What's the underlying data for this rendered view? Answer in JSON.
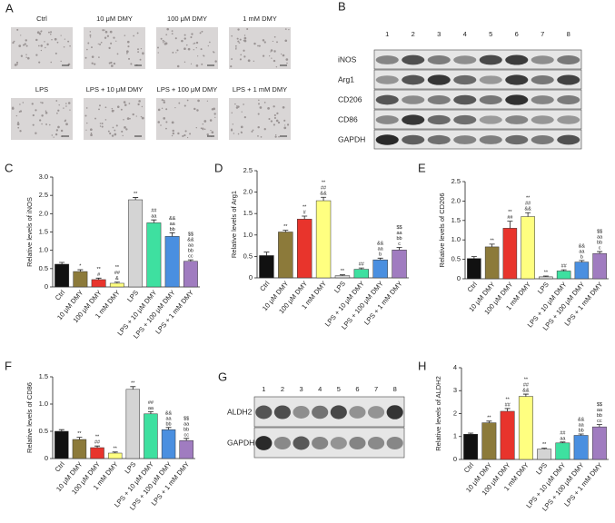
{
  "panel_a": {
    "panel": "A",
    "labels": [
      "Ctrl",
      "10 μM DMY",
      "100 μM DMY",
      "1 mM DMY",
      "LPS",
      "LPS + 10 μM DMY",
      "LPS + 100 μM DMY",
      "LPS + 1 mM DMY"
    ]
  },
  "panel_b": {
    "panel": "B",
    "lanes": [
      "1",
      "2",
      "3",
      "4",
      "5",
      "6",
      "7",
      "8"
    ],
    "rows": [
      "iNOS",
      "Arg1",
      "CD206",
      "CD86",
      "GAPDH"
    ]
  },
  "panel_g": {
    "panel": "G",
    "lanes": [
      "1",
      "2",
      "3",
      "4",
      "5",
      "6",
      "7",
      "8"
    ],
    "rows": [
      "ALDH2",
      "GAPDH"
    ]
  },
  "chart_data": [
    {
      "type": "bar",
      "panel": "C",
      "ylabel": "Relative levels of iNOS",
      "categories": [
        "Ctrl",
        "10 μM DMY",
        "100 μM DMY",
        "1 mM DMY",
        "LPS",
        "LPS + 10 μM DMY",
        "LPS + 100 μM DMY",
        "LPS + 1 mM DMY"
      ],
      "values": [
        0.62,
        0.42,
        0.2,
        0.1,
        2.38,
        1.75,
        1.38,
        0.7
      ],
      "errors": [
        0.05,
        0.05,
        0.04,
        0.03,
        0.06,
        0.08,
        0.1,
        0.04
      ],
      "colors": [
        "#111111",
        "#8c7a3a",
        "#e8342c",
        "#ffff80",
        "#d4d4d4",
        "#3ee0a0",
        "#4a8fe0",
        "#a07cc0"
      ],
      "annotations": [
        [],
        [
          "*"
        ],
        [
          "**",
          "#"
        ],
        [
          "**",
          "##",
          "&"
        ],
        [
          "**"
        ],
        [
          "##",
          "aa"
        ],
        [
          "&&",
          "aa",
          "bb"
        ],
        [
          "$$",
          "&&",
          "aa",
          "bb",
          "cc"
        ]
      ],
      "ylim": [
        0,
        3
      ],
      "yticks": [
        0,
        0.5,
        {
          "value": 1,
          "label": "1.0"
        },
        1.5,
        {
          "value": 2,
          "label": "2.0"
        },
        2.5,
        {
          "value": 3,
          "label": "3.0"
        }
      ]
    },
    {
      "type": "bar",
      "panel": "D",
      "ylabel": "Relative levels of Arg1",
      "categories": [
        "Ctrl",
        "10 μM DMY",
        "100 μM DMY",
        "1 mM DMY",
        "LPS",
        "LPS + 10 μM DMY",
        "LPS + 100 μM DMY",
        "LPS + 1 mM DMY"
      ],
      "values": [
        0.52,
        1.07,
        1.37,
        1.8,
        0.05,
        0.2,
        0.42,
        0.65
      ],
      "errors": [
        0.08,
        0.04,
        0.07,
        0.08,
        0.02,
        0.03,
        0.04,
        0.06
      ],
      "colors": [
        "#111111",
        "#8c7a3a",
        "#e8342c",
        "#ffff80",
        "#d4d4d4",
        "#3ee0a0",
        "#4a8fe0",
        "#a07cc0"
      ],
      "annotations": [
        [],
        [
          "**"
        ],
        [
          "**",
          "#"
        ],
        [
          "**",
          "##",
          "&&"
        ],
        [
          "**"
        ],
        [
          "##"
        ],
        [
          "&&",
          "aa",
          "b"
        ],
        [
          "$$",
          "aa",
          "bb",
          "c"
        ]
      ],
      "ylim": [
        0,
        2.5
      ],
      "yticks": [
        0,
        0.5,
        {
          "value": 1,
          "label": "1.0"
        },
        1.5,
        {
          "value": 2,
          "label": "2.0"
        },
        2.5
      ]
    },
    {
      "type": "bar",
      "panel": "E",
      "ylabel": "Relative levels of CD206",
      "categories": [
        "Ctrl",
        "10 μM DMY",
        "100 μM DMY",
        "1 mM DMY",
        "LPS",
        "LPS + 10 μM DMY",
        "LPS + 100 μM DMY",
        "LPS + 1 mM DMY"
      ],
      "values": [
        0.52,
        0.82,
        1.3,
        1.6,
        0.05,
        0.2,
        0.43,
        0.65
      ],
      "errors": [
        0.05,
        0.07,
        0.18,
        0.1,
        0.02,
        0.03,
        0.04,
        0.05
      ],
      "colors": [
        "#111111",
        "#8c7a3a",
        "#e8342c",
        "#ffff80",
        "#d4d4d4",
        "#3ee0a0",
        "#4a8fe0",
        "#a07cc0"
      ],
      "annotations": [
        [],
        [
          "**"
        ],
        [
          "**",
          "##"
        ],
        [
          "**",
          "##",
          "&&"
        ],
        [
          "**"
        ],
        [
          "##"
        ],
        [
          "&&",
          "aa",
          "b"
        ],
        [
          "$$",
          "aa",
          "bb",
          "c"
        ]
      ],
      "ylim": [
        0,
        2.5
      ],
      "yticks": [
        0,
        0.5,
        {
          "value": 1,
          "label": "1.0"
        },
        1.5,
        {
          "value": 2,
          "label": "2.0"
        },
        2.5
      ]
    },
    {
      "type": "bar",
      "panel": "F",
      "ylabel": "Relative levels of CD86",
      "categories": [
        "Ctrl",
        "10 μM DMY",
        "100 μM DMY",
        "1 mM DMY",
        "LPS",
        "LPS + 10 μM DMY",
        "LPS + 100 μM DMY",
        "LPS + 1 mM DMY"
      ],
      "values": [
        0.5,
        0.35,
        0.2,
        0.1,
        1.27,
        0.82,
        0.53,
        0.33
      ],
      "errors": [
        0.03,
        0.04,
        0.03,
        0.02,
        0.05,
        0.04,
        0.04,
        0.04
      ],
      "colors": [
        "#111111",
        "#8c7a3a",
        "#e8342c",
        "#ffff80",
        "#d4d4d4",
        "#3ee0a0",
        "#4a8fe0",
        "#a07cc0"
      ],
      "annotations": [
        [],
        [
          "**"
        ],
        [
          "**",
          "##"
        ],
        [
          "**"
        ],
        [
          "**"
        ],
        [
          "##",
          "aa"
        ],
        [
          "&&",
          "aa",
          "bb"
        ],
        [
          "$$",
          "aa",
          "bb",
          "cc"
        ]
      ],
      "ylim": [
        0,
        1.5
      ],
      "yticks": [
        0,
        0.5,
        {
          "value": 1,
          "label": "1.0"
        },
        1.5
      ]
    },
    {
      "type": "bar",
      "panel": "H",
      "ylabel": "Relative levels of ALDH2",
      "categories": [
        "Ctrl",
        "10 μM DMY",
        "100 μM DMY",
        "1 mM DMY",
        "LPS",
        "LPS + 10 μM DMY",
        "LPS + 100 μM DMY",
        "LPS + 1 mM DMY"
      ],
      "values": [
        1.1,
        1.6,
        2.1,
        2.75,
        0.45,
        0.72,
        1.05,
        1.42
      ],
      "errors": [
        0.05,
        0.07,
        0.12,
        0.1,
        0.04,
        0.04,
        0.06,
        0.1
      ],
      "colors": [
        "#111111",
        "#8c7a3a",
        "#e8342c",
        "#ffff80",
        "#d4d4d4",
        "#3ee0a0",
        "#4a8fe0",
        "#a07cc0"
      ],
      "annotations": [
        [],
        [
          "**"
        ],
        [
          "**",
          "##"
        ],
        [
          "**",
          "##",
          "&&"
        ],
        [
          "**"
        ],
        [
          "##",
          "aa"
        ],
        [
          "&&",
          "aa",
          "bb"
        ],
        [
          "$$",
          "aa",
          "bb",
          "cc"
        ]
      ],
      "ylim": [
        0,
        4
      ],
      "yticks": [
        0,
        1,
        2,
        3,
        4
      ]
    }
  ]
}
